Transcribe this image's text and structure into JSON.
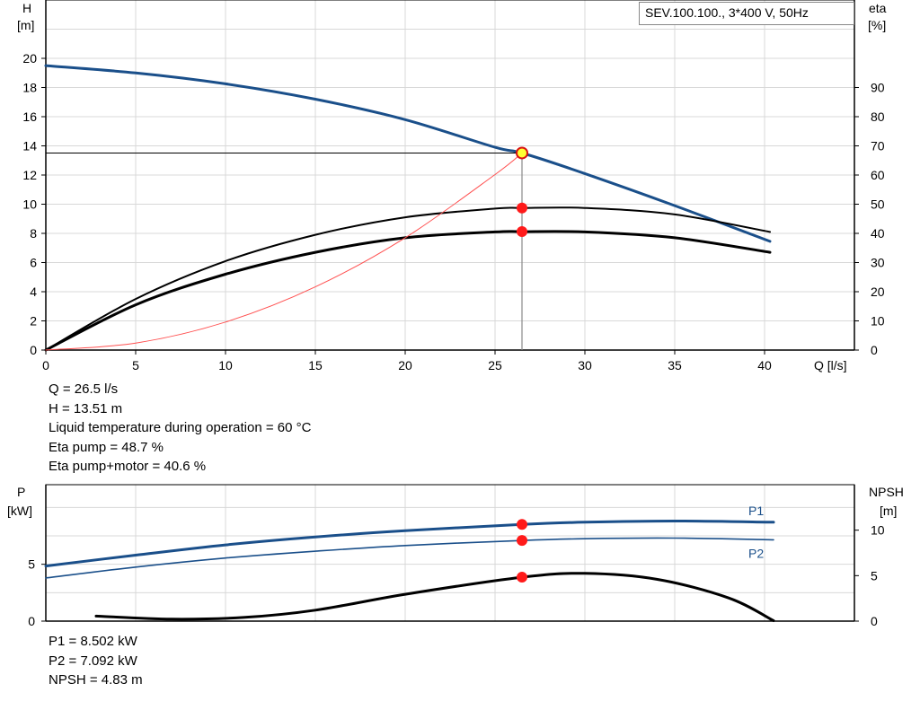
{
  "chart_data": [
    {
      "type": "line",
      "title": "SEV.100.100., 3*400 V, 50Hz",
      "xlabel": "Q [l/s]",
      "ylabel_left": [
        "H",
        "[m]"
      ],
      "ylabel_right": [
        "eta",
        "[%]"
      ],
      "xlim": [
        0,
        45
      ],
      "ylim_left": [
        0,
        24
      ],
      "ylim_right": [
        0,
        120
      ],
      "x_ticks": [
        0,
        5,
        10,
        15,
        20,
        25,
        30,
        35,
        40
      ],
      "y_left_ticks": [
        0,
        2,
        4,
        6,
        8,
        10,
        12,
        14,
        16,
        18,
        20
      ],
      "y_right_ticks": [
        0,
        10,
        20,
        30,
        40,
        50,
        60,
        70,
        80,
        90
      ],
      "grid": true,
      "series": [
        {
          "axis": "left",
          "color": "#1a4f8a",
          "x": [
            0,
            5,
            10,
            15,
            20,
            25,
            26.5,
            30,
            35,
            40.3
          ],
          "y": [
            19.5,
            19.0,
            18.25,
            17.2,
            15.8,
            13.9,
            13.51,
            12.1,
            9.9,
            7.45
          ]
        },
        {
          "axis": "right",
          "color": "#000000",
          "x": [
            0,
            5,
            10,
            15,
            20,
            25,
            26.5,
            30,
            35,
            40.3
          ],
          "y": [
            0,
            17.5,
            30.5,
            39.5,
            45.5,
            48.5,
            48.7,
            48.7,
            46.5,
            40.5
          ]
        },
        {
          "axis": "right",
          "color": "#000000",
          "x": [
            0,
            5,
            10,
            15,
            20,
            25,
            26.5,
            30,
            35,
            40.3
          ],
          "y": [
            0,
            15.5,
            26.0,
            33.5,
            38.5,
            40.5,
            40.6,
            40.5,
            38.5,
            33.5
          ]
        },
        {
          "axis": "left",
          "color": "#ff5050",
          "x": [
            0,
            5,
            10,
            15,
            20,
            25,
            26.5
          ],
          "y": [
            0,
            0.48,
            1.92,
            4.33,
            7.7,
            12.03,
            13.51
          ]
        }
      ],
      "operating_point": {
        "q": 26.5,
        "h": 13.51,
        "eta_pump": 48.7,
        "eta_pump_motor": 40.6
      }
    },
    {
      "type": "line",
      "ylabel_left": [
        "P",
        "[kW]"
      ],
      "ylabel_right": [
        "NPSH",
        "[m]"
      ],
      "xlim": [
        0,
        45
      ],
      "ylim_left": [
        0,
        12
      ],
      "ylim_right": [
        0,
        15
      ],
      "y_left_ticks": [
        0,
        5
      ],
      "y_right_ticks": [
        0,
        5,
        10
      ],
      "grid": true,
      "series": [
        {
          "name": "P1",
          "axis": "left",
          "color": "#1a4f8a",
          "x": [
            0,
            5,
            10,
            15,
            20,
            26.5,
            30,
            35,
            40.5
          ],
          "y": [
            4.85,
            5.8,
            6.7,
            7.4,
            7.95,
            8.502,
            8.7,
            8.8,
            8.7
          ]
        },
        {
          "name": "P2",
          "axis": "left",
          "color": "#1a4f8a",
          "x": [
            0,
            5,
            10,
            15,
            20,
            26.5,
            30,
            35,
            40.5
          ],
          "y": [
            3.8,
            4.75,
            5.55,
            6.15,
            6.65,
            7.092,
            7.25,
            7.3,
            7.15
          ]
        },
        {
          "name": "NPSH",
          "axis": "right",
          "color": "#000000",
          "x": [
            2.8,
            7,
            11,
            15,
            20,
            26.5,
            30,
            34,
            38,
            40.5
          ],
          "y": [
            0.55,
            0.22,
            0.4,
            1.2,
            2.95,
            4.83,
            5.25,
            4.6,
            2.55,
            0.05
          ]
        }
      ],
      "operating_point": {
        "q": 26.5,
        "p1": 8.502,
        "p2": 7.092,
        "npsh": 4.83
      }
    }
  ],
  "readout_top": [
    "Q = 26.5 l/s",
    "H = 13.51 m",
    "Liquid temperature during operation = 60 °C",
    "Eta pump = 48.7 %",
    "Eta pump+motor = 40.6 %"
  ],
  "readout_bottom": [
    "P1 = 8.502 kW",
    "P2 = 7.092 kW",
    "NPSH = 4.83 m"
  ]
}
